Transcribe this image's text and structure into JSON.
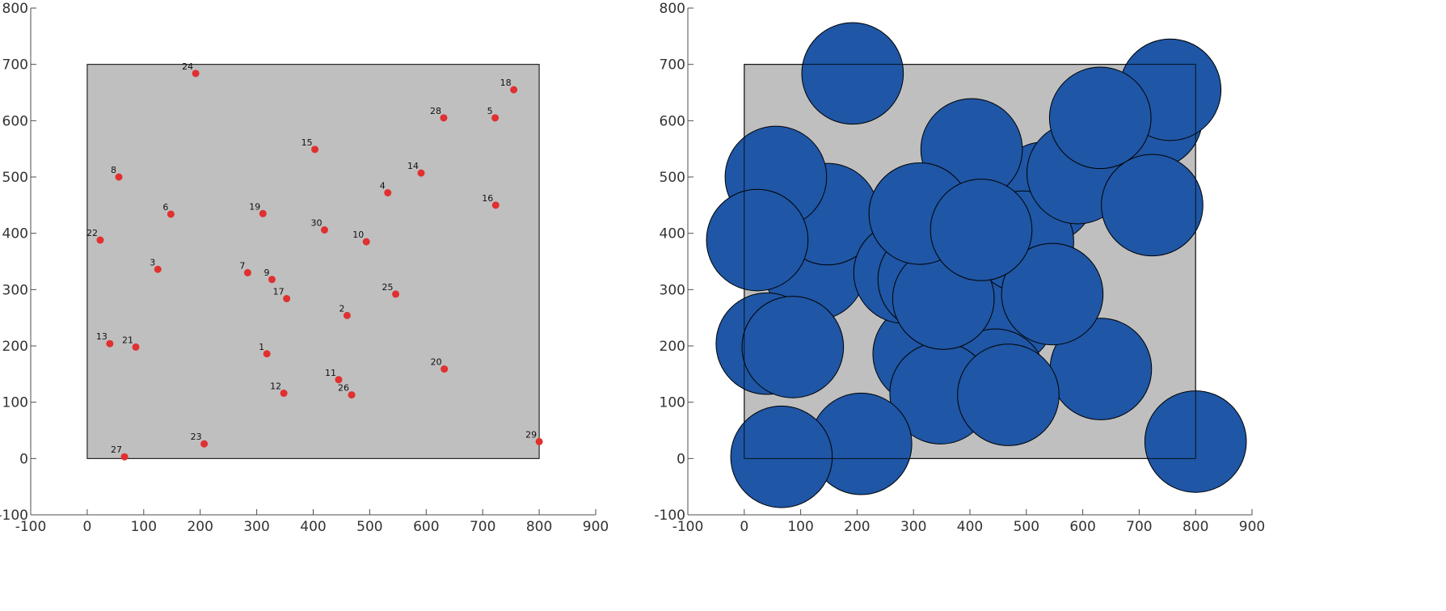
{
  "colors": {
    "background": "#ffffff",
    "domain_fill": "#bfbfbf",
    "domain_stroke": "#000000",
    "point_fill": "#e03030",
    "circle_fill": "#1f56a5",
    "circle_stroke": "#000000",
    "axis": "#4d4d4d"
  },
  "chart_data": [
    {
      "type": "scatter",
      "title": "",
      "xlabel": "",
      "ylabel": "",
      "xlim": [
        -100,
        900
      ],
      "ylim": [
        -100,
        800
      ],
      "xticks": [
        -100,
        0,
        100,
        200,
        300,
        400,
        500,
        600,
        700,
        800,
        900
      ],
      "yticks": [
        -100,
        0,
        100,
        200,
        300,
        400,
        500,
        600,
        700,
        800
      ],
      "grid": false,
      "domain": {
        "x": [
          0,
          800
        ],
        "y": [
          0,
          700
        ]
      },
      "points": [
        {
          "id": "1",
          "x": 318,
          "y": 186
        },
        {
          "id": "2",
          "x": 460,
          "y": 254
        },
        {
          "id": "3",
          "x": 125,
          "y": 336
        },
        {
          "id": "4",
          "x": 532,
          "y": 472
        },
        {
          "id": "5",
          "x": 722,
          "y": 605
        },
        {
          "id": "6",
          "x": 148,
          "y": 434
        },
        {
          "id": "7",
          "x": 284,
          "y": 330
        },
        {
          "id": "8",
          "x": 56,
          "y": 500
        },
        {
          "id": "9",
          "x": 327,
          "y": 318
        },
        {
          "id": "10",
          "x": 494,
          "y": 385
        },
        {
          "id": "11",
          "x": 445,
          "y": 140
        },
        {
          "id": "12",
          "x": 348,
          "y": 116
        },
        {
          "id": "13",
          "x": 40,
          "y": 204
        },
        {
          "id": "14",
          "x": 591,
          "y": 507
        },
        {
          "id": "15",
          "x": 403,
          "y": 549
        },
        {
          "id": "16",
          "x": 723,
          "y": 450
        },
        {
          "id": "17",
          "x": 353,
          "y": 284
        },
        {
          "id": "18",
          "x": 755,
          "y": 655
        },
        {
          "id": "19",
          "x": 311,
          "y": 435
        },
        {
          "id": "20",
          "x": 632,
          "y": 159
        },
        {
          "id": "21",
          "x": 86,
          "y": 198
        },
        {
          "id": "22",
          "x": 23,
          "y": 388
        },
        {
          "id": "23",
          "x": 207,
          "y": 26
        },
        {
          "id": "24",
          "x": 192,
          "y": 684
        },
        {
          "id": "25",
          "x": 546,
          "y": 292
        },
        {
          "id": "26",
          "x": 468,
          "y": 113
        },
        {
          "id": "27",
          "x": 66,
          "y": 3
        },
        {
          "id": "28",
          "x": 631,
          "y": 605
        },
        {
          "id": "29",
          "x": 800,
          "y": 30
        },
        {
          "id": "30",
          "x": 420,
          "y": 406
        }
      ]
    },
    {
      "type": "scatter",
      "title": "",
      "xlabel": "",
      "ylabel": "",
      "xlim": [
        -100,
        900
      ],
      "ylim": [
        -100,
        800
      ],
      "xticks": [
        -100,
        0,
        100,
        200,
        300,
        400,
        500,
        600,
        700,
        800,
        900
      ],
      "yticks": [
        -100,
        0,
        100,
        200,
        300,
        400,
        500,
        600,
        700,
        800
      ],
      "grid": false,
      "domain": {
        "x": [
          0,
          800
        ],
        "y": [
          0,
          700
        ]
      },
      "circle_radius": 90,
      "centers": [
        {
          "id": "1",
          "x": 318,
          "y": 186
        },
        {
          "id": "2",
          "x": 460,
          "y": 254
        },
        {
          "id": "3",
          "x": 125,
          "y": 336
        },
        {
          "id": "4",
          "x": 532,
          "y": 472
        },
        {
          "id": "5",
          "x": 722,
          "y": 605
        },
        {
          "id": "6",
          "x": 148,
          "y": 434
        },
        {
          "id": "7",
          "x": 284,
          "y": 330
        },
        {
          "id": "8",
          "x": 56,
          "y": 500
        },
        {
          "id": "9",
          "x": 327,
          "y": 318
        },
        {
          "id": "10",
          "x": 494,
          "y": 385
        },
        {
          "id": "11",
          "x": 445,
          "y": 140
        },
        {
          "id": "12",
          "x": 348,
          "y": 116
        },
        {
          "id": "13",
          "x": 40,
          "y": 204
        },
        {
          "id": "14",
          "x": 591,
          "y": 507
        },
        {
          "id": "15",
          "x": 403,
          "y": 549
        },
        {
          "id": "16",
          "x": 723,
          "y": 450
        },
        {
          "id": "17",
          "x": 353,
          "y": 284
        },
        {
          "id": "18",
          "x": 755,
          "y": 655
        },
        {
          "id": "19",
          "x": 311,
          "y": 435
        },
        {
          "id": "20",
          "x": 632,
          "y": 159
        },
        {
          "id": "21",
          "x": 86,
          "y": 198
        },
        {
          "id": "22",
          "x": 23,
          "y": 388
        },
        {
          "id": "23",
          "x": 207,
          "y": 26
        },
        {
          "id": "24",
          "x": 192,
          "y": 684
        },
        {
          "id": "25",
          "x": 546,
          "y": 292
        },
        {
          "id": "26",
          "x": 468,
          "y": 113
        },
        {
          "id": "27",
          "x": 66,
          "y": 3
        },
        {
          "id": "28",
          "x": 631,
          "y": 605
        },
        {
          "id": "29",
          "x": 800,
          "y": 30
        },
        {
          "id": "30",
          "x": 420,
          "y": 406
        }
      ]
    }
  ]
}
